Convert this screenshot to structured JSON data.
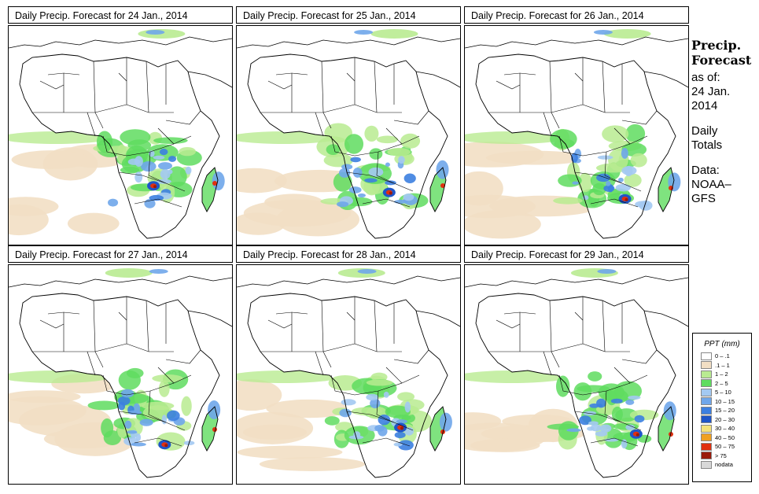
{
  "panels": [
    {
      "title": "Daily Precip. Forecast for  24 Jan., 2014"
    },
    {
      "title": "Daily Precip. Forecast for  25 Jan., 2014"
    },
    {
      "title": "Daily Precip. Forecast for  26 Jan., 2014"
    },
    {
      "title": "Daily Precip. Forecast for  27 Jan., 2014"
    },
    {
      "title": "Daily Precip. Forecast for  28 Jan., 2014"
    },
    {
      "title": "Daily Precip. Forecast for  29 Jan., 2014"
    }
  ],
  "side": {
    "heading1": "Precip.",
    "heading2": "Forecast",
    "asof": "as of:",
    "date1": "24 Jan.",
    "date2": "2014",
    "daily1": "Daily",
    "daily2": "Totals",
    "data1": "Data:",
    "data2": "NOAA–",
    "data3": "GFS"
  },
  "legend": {
    "title": "PPT (mm)",
    "items": [
      {
        "label": "0 – .1",
        "color": "#ffffff"
      },
      {
        "label": ".1 – 1",
        "color": "#f2dfc4"
      },
      {
        "label": "1 – 2",
        "color": "#b9eb91"
      },
      {
        "label": "2 – 5",
        "color": "#5fdc5f"
      },
      {
        "label": "5 – 10",
        "color": "#a3c9f2"
      },
      {
        "label": "10 – 15",
        "color": "#6fa6ea"
      },
      {
        "label": "15 – 20",
        "color": "#3c7fe0"
      },
      {
        "label": "20 – 30",
        "color": "#1f55c8"
      },
      {
        "label": "30 – 40",
        "color": "#f5e27a"
      },
      {
        "label": "40 – 50",
        "color": "#f0a020"
      },
      {
        "label": "50 – 75",
        "color": "#e03010"
      },
      {
        "label": "> 75",
        "color": "#9a1a0a"
      },
      {
        "label": "nodata",
        "color": "#d8d8d8"
      }
    ]
  }
}
